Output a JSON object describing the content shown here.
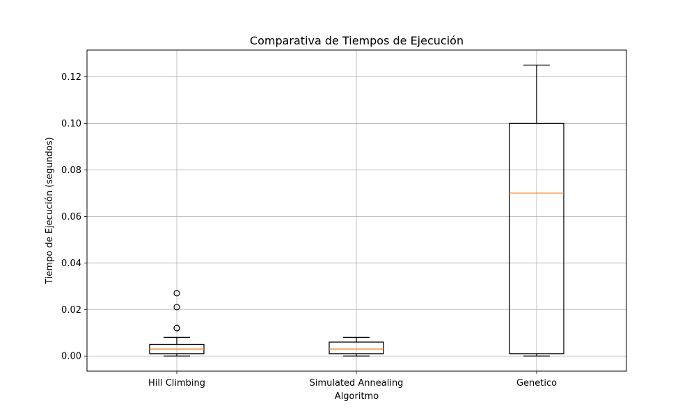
{
  "chart_data": {
    "type": "boxplot",
    "title": "Comparativa de Tiempos de Ejecución",
    "xlabel": "Algoritmo",
    "ylabel": "Tiempo de Ejecución (segundos)",
    "ylim": [
      -0.0065,
      0.1315
    ],
    "yticks": [
      0.0,
      0.02,
      0.04,
      0.06,
      0.08,
      0.1,
      0.12
    ],
    "ytick_labels": [
      "0.00",
      "0.02",
      "0.04",
      "0.06",
      "0.08",
      "0.10",
      "0.12"
    ],
    "grid": true,
    "categories": [
      "Hill Climbing",
      "Simulated Annealing",
      "Genetico"
    ],
    "boxes": [
      {
        "label": "Hill Climbing",
        "whisker_low": 0.0,
        "q1": 0.001,
        "median": 0.003,
        "q3": 0.005,
        "whisker_high": 0.008,
        "outliers": [
          0.012,
          0.012,
          0.021,
          0.027
        ]
      },
      {
        "label": "Simulated Annealing",
        "whisker_low": 0.0,
        "q1": 0.001,
        "median": 0.003,
        "q3": 0.006,
        "whisker_high": 0.008,
        "outliers": []
      },
      {
        "label": "Genetico",
        "whisker_low": 0.0,
        "q1": 0.001,
        "median": 0.07,
        "q3": 0.1,
        "whisker_high": 0.125,
        "outliers": []
      }
    ],
    "colors": {
      "box": "#000000",
      "median": "#ff7f0e",
      "grid": "#b0b0b0",
      "outlier": "#000000"
    }
  }
}
